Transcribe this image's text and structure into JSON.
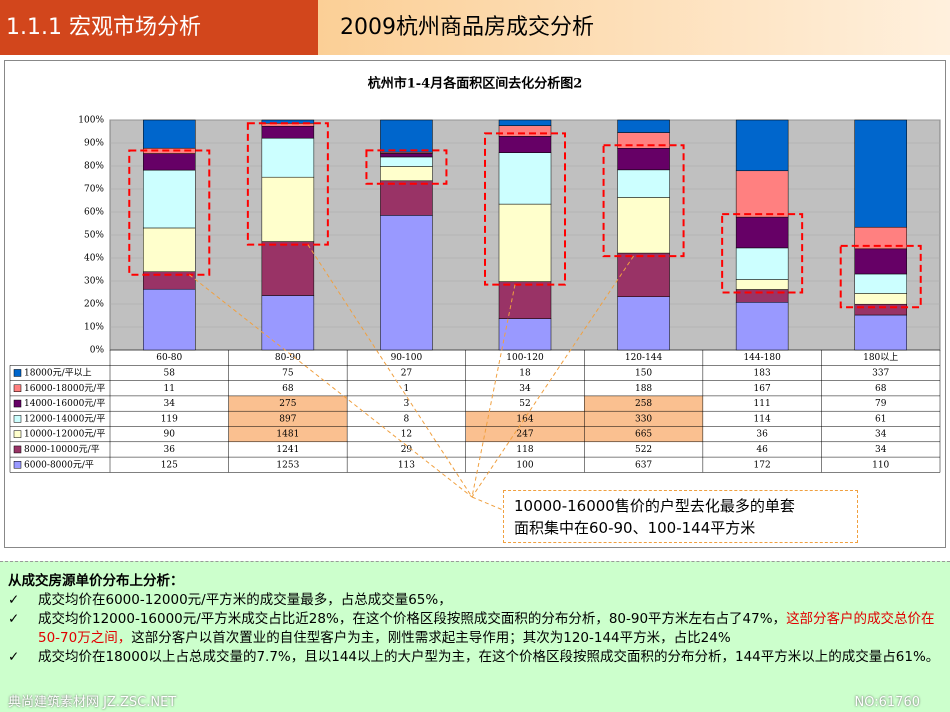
{
  "header": {
    "section": "1.1.1 宏观市场分析",
    "title": "2009杭州商品房成交分析"
  },
  "chart_data": {
    "type": "bar",
    "stacked": "percent",
    "title": "杭州市1-4月各面积区间去化分析图2",
    "categories": [
      "60-80",
      "80-90",
      "90-100",
      "100-120",
      "120-144",
      "144-180",
      "180以上"
    ],
    "series": [
      {
        "name": "6000-8000元/平",
        "color": "#9999ff",
        "values": [
          125,
          1253,
          113,
          100,
          637,
          172,
          110
        ]
      },
      {
        "name": "8000-10000元/平",
        "color": "#993366",
        "values": [
          36,
          1241,
          29,
          118,
          522,
          46,
          34
        ]
      },
      {
        "name": "10000-12000元/平",
        "color": "#ffffcc",
        "values": [
          90,
          1481,
          12,
          247,
          665,
          36,
          34
        ]
      },
      {
        "name": "12000-14000元/平",
        "color": "#ccffff",
        "values": [
          119,
          897,
          8,
          164,
          330,
          114,
          61
        ]
      },
      {
        "name": "14000-16000元/平",
        "color": "#660066",
        "values": [
          34,
          275,
          3,
          52,
          258,
          111,
          79
        ]
      },
      {
        "name": "16000-18000元/平",
        "color": "#ff8080",
        "values": [
          11,
          68,
          1,
          34,
          188,
          167,
          68
        ]
      },
      {
        "name": "18000元/平以上",
        "color": "#0066cc",
        "values": [
          58,
          75,
          27,
          18,
          150,
          183,
          337
        ]
      }
    ],
    "ylim": [
      0,
      100
    ],
    "yticks": [
      {
        "value": 0,
        "label": "0%"
      },
      {
        "value": 10,
        "label": "10%"
      },
      {
        "value": 20,
        "label": "20%"
      },
      {
        "value": 30,
        "label": "30%"
      },
      {
        "value": 40,
        "label": "40%"
      },
      {
        "value": 50,
        "label": "50%"
      },
      {
        "value": 60,
        "label": "60%"
      },
      {
        "value": 70,
        "label": "70%"
      },
      {
        "value": 80,
        "label": "80%"
      },
      {
        "value": 90,
        "label": "90%"
      },
      {
        "value": 100,
        "label": "100%"
      }
    ],
    "grid": true
  },
  "callout": {
    "lines": [
      "10000-16000售价的户型去化最多的单套",
      "面积集中在60-90、100-144平方米"
    ]
  },
  "analysis": {
    "heading": "从成交房源单价分布上分析：",
    "points": [
      [
        "成交均价在6000-12000元/平方米的成交量最多，占总成交量65%，"
      ],
      [
        "成交均价12000-16000元/平方米成交占比近28%，在这个价格区段按照成交面积的分布分析，80-90平方米左右占了47%，",
        "这部分客户的成交总价在50-70万之间，",
        "这部分客户以首次置业的自住型客户为主，刚性需求起主导作用；其次为120-144平方米，占比24%"
      ],
      [
        "成交均价在18000以上占总成交量的7.7%，且以144以上的大户型为主，在这个价格区段按照成交面积的分布分析，144平方米以上的成交量占61%。"
      ]
    ]
  },
  "watermark": {
    "left": "典尚建筑素材网 JZ.ZSC.NET",
    "right": "NO:61760"
  }
}
